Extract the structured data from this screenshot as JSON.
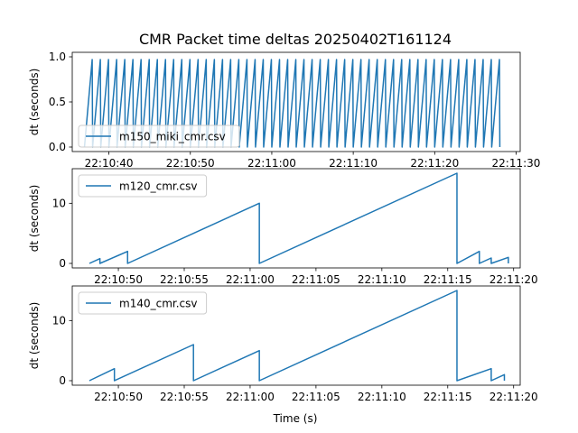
{
  "figure": {
    "title": "CMR Packet time deltas 20250402T161124",
    "xlabel": "Time (s)"
  },
  "colors": {
    "series": "#1f77b4",
    "axis": "#000000",
    "legend_border": "#cccccc"
  },
  "chart_data": [
    {
      "type": "line",
      "ylabel": "dt (seconds)",
      "legend": {
        "label": "m150_miki_cmr.csv",
        "placement": "lower-left"
      },
      "grid": false,
      "x_unit": "time-of-day",
      "xlim": [
        "22:10:35.5",
        "22:11:30.5"
      ],
      "ylim": [
        -0.05,
        1.05
      ],
      "x_ticks": [
        "22:10:40",
        "22:10:50",
        "22:11:00",
        "22:11:10",
        "22:11:20",
        "22:11:30"
      ],
      "y_ticks": [
        "0.0",
        "0.5",
        "1.0"
      ],
      "x_tick_values": [
        "22:10:40",
        "22:10:50",
        "22:11:00",
        "22:11:10",
        "22:11:20",
        "22:11:30"
      ],
      "y_tick_values": [
        0,
        0.5,
        1.0
      ],
      "sawtooth": {
        "start": "22:10:37",
        "end": "22:11:28",
        "peak": 0.97,
        "period_seconds": 1.0,
        "rise_seconds": 0.95
      }
    },
    {
      "type": "line",
      "ylabel": "dt (seconds)",
      "legend": {
        "label": "m120_cmr.csv",
        "placement": "upper-left"
      },
      "grid": false,
      "x_unit": "time-of-day",
      "xlim": [
        "22:10:46.5",
        "22:11:20.5"
      ],
      "ylim": [
        -0.75,
        15.75
      ],
      "x_ticks": [
        "22:10:50",
        "22:10:55",
        "22:11:00",
        "22:11:05",
        "22:11:10",
        "22:11:15",
        "22:11:20"
      ],
      "y_ticks": [
        "0",
        "10"
      ],
      "x_tick_values": [
        "22:10:50",
        "22:10:55",
        "22:11:00",
        "22:11:05",
        "22:11:10",
        "22:11:15",
        "22:11:20"
      ],
      "y_tick_values": [
        0,
        10
      ],
      "points": [
        [
          "22:10:47.8",
          0
        ],
        [
          "22:10:48.6",
          0.8
        ],
        [
          "22:10:48.6",
          0
        ],
        [
          "22:10:50.7",
          2
        ],
        [
          "22:10:50.7",
          0
        ],
        [
          "22:11:00.7",
          10
        ],
        [
          "22:11:00.7",
          0
        ],
        [
          "22:11:15.7",
          15
        ],
        [
          "22:11:15.7",
          0
        ],
        [
          "22:11:17.4",
          2
        ],
        [
          "22:11:17.4",
          0
        ],
        [
          "22:11:18.3",
          0.9
        ],
        [
          "22:11:18.3",
          0
        ],
        [
          "22:11:19.6",
          1
        ],
        [
          "22:11:19.6",
          0
        ]
      ]
    },
    {
      "type": "line",
      "ylabel": "dt (seconds)",
      "legend": {
        "label": "m140_cmr.csv",
        "placement": "upper-left"
      },
      "grid": false,
      "x_unit": "time-of-day",
      "xlim": [
        "22:10:46.5",
        "22:11:20.5"
      ],
      "ylim": [
        -0.75,
        15.75
      ],
      "x_ticks": [
        "22:10:50",
        "22:10:55",
        "22:11:00",
        "22:11:05",
        "22:11:10",
        "22:11:15",
        "22:11:20"
      ],
      "y_ticks": [
        "0",
        "10"
      ],
      "x_tick_values": [
        "22:10:50",
        "22:10:55",
        "22:11:00",
        "22:11:05",
        "22:11:10",
        "22:11:15",
        "22:11:20"
      ],
      "y_tick_values": [
        0,
        10
      ],
      "points": [
        [
          "22:10:47.8",
          0
        ],
        [
          "22:10:49.7",
          2
        ],
        [
          "22:10:49.7",
          0
        ],
        [
          "22:10:55.7",
          6
        ],
        [
          "22:10:55.7",
          0
        ],
        [
          "22:11:00.7",
          5
        ],
        [
          "22:11:00.7",
          0
        ],
        [
          "22:11:15.7",
          15
        ],
        [
          "22:11:15.7",
          0
        ],
        [
          "22:11:18.3",
          2
        ],
        [
          "22:11:18.3",
          0
        ],
        [
          "22:11:19.3",
          1
        ],
        [
          "22:11:19.3",
          0
        ]
      ]
    }
  ]
}
